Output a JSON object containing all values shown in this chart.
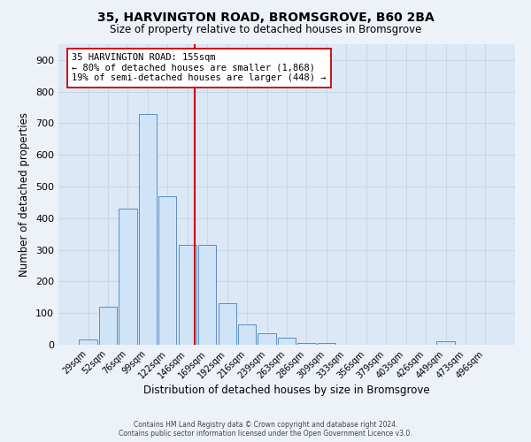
{
  "title": "35, HARVINGTON ROAD, BROMSGROVE, B60 2BA",
  "subtitle": "Size of property relative to detached houses in Bromsgrove",
  "xlabel": "Distribution of detached houses by size in Bromsgrove",
  "ylabel": "Number of detached properties",
  "bar_labels": [
    "29sqm",
    "52sqm",
    "76sqm",
    "99sqm",
    "122sqm",
    "146sqm",
    "169sqm",
    "192sqm",
    "216sqm",
    "239sqm",
    "263sqm",
    "286sqm",
    "309sqm",
    "333sqm",
    "356sqm",
    "379sqm",
    "403sqm",
    "426sqm",
    "449sqm",
    "473sqm",
    "496sqm"
  ],
  "bar_values": [
    18,
    120,
    430,
    730,
    470,
    315,
    315,
    130,
    65,
    35,
    22,
    5,
    5,
    0,
    0,
    0,
    0,
    0,
    10,
    0,
    0
  ],
  "bar_color": "#d0e4f7",
  "bar_edge_color": "#5b8ec4",
  "vline_x": 5.35,
  "vline_color": "#cc0000",
  "annotation_text_line1": "35 HARVINGTON ROAD: 155sqm",
  "annotation_text_line2": "← 80% of detached houses are smaller (1,868)",
  "annotation_text_line3": "19% of semi-detached houses are larger (448) →",
  "box_facecolor": "#ffffff",
  "box_edgecolor": "#cc0000",
  "ylim": [
    0,
    950
  ],
  "yticks": [
    0,
    100,
    200,
    300,
    400,
    500,
    600,
    700,
    800,
    900
  ],
  "bg_color": "#dce8f5",
  "fig_bg_color": "#edf2f9",
  "grid_color": "#c8d8ea",
  "footer_line1": "Contains HM Land Registry data © Crown copyright and database right 2024.",
  "footer_line2": "Contains public sector information licensed under the Open Government Licence v3.0."
}
